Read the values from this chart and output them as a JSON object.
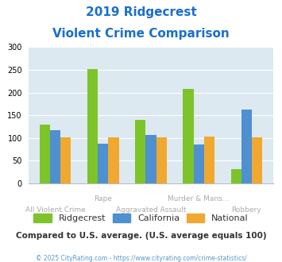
{
  "title_line1": "2019 Ridgecrest",
  "title_line2": "Violent Crime Comparison",
  "title_color": "#1a6fcc",
  "ridgecrest": [
    130,
    252,
    140,
    208,
    31
  ],
  "california": [
    118,
    88,
    107,
    85,
    163
  ],
  "national": [
    102,
    102,
    102,
    103,
    102
  ],
  "color_ridgecrest": "#7dc42a",
  "color_california": "#4e90d0",
  "color_national": "#f0a830",
  "ylim": [
    0,
    300
  ],
  "yticks": [
    0,
    50,
    100,
    150,
    200,
    250,
    300
  ],
  "bg_color": "#dce9f0",
  "note": "Compared to U.S. average. (U.S. average equals 100)",
  "note_color": "#333333",
  "copyright": "© 2025 CityRating.com - https://www.cityrating.com/crime-statistics/",
  "copyright_color": "#5599cc",
  "xlabel_color": "#aaaaaa",
  "grid_color": "#ffffff",
  "bar_width": 0.22,
  "labels_top": [
    "",
    "Rape",
    "",
    "Murder & Mans...",
    ""
  ],
  "labels_bottom": [
    "All Violent Crime",
    "",
    "Aggravated Assault",
    "",
    "Robbery"
  ]
}
